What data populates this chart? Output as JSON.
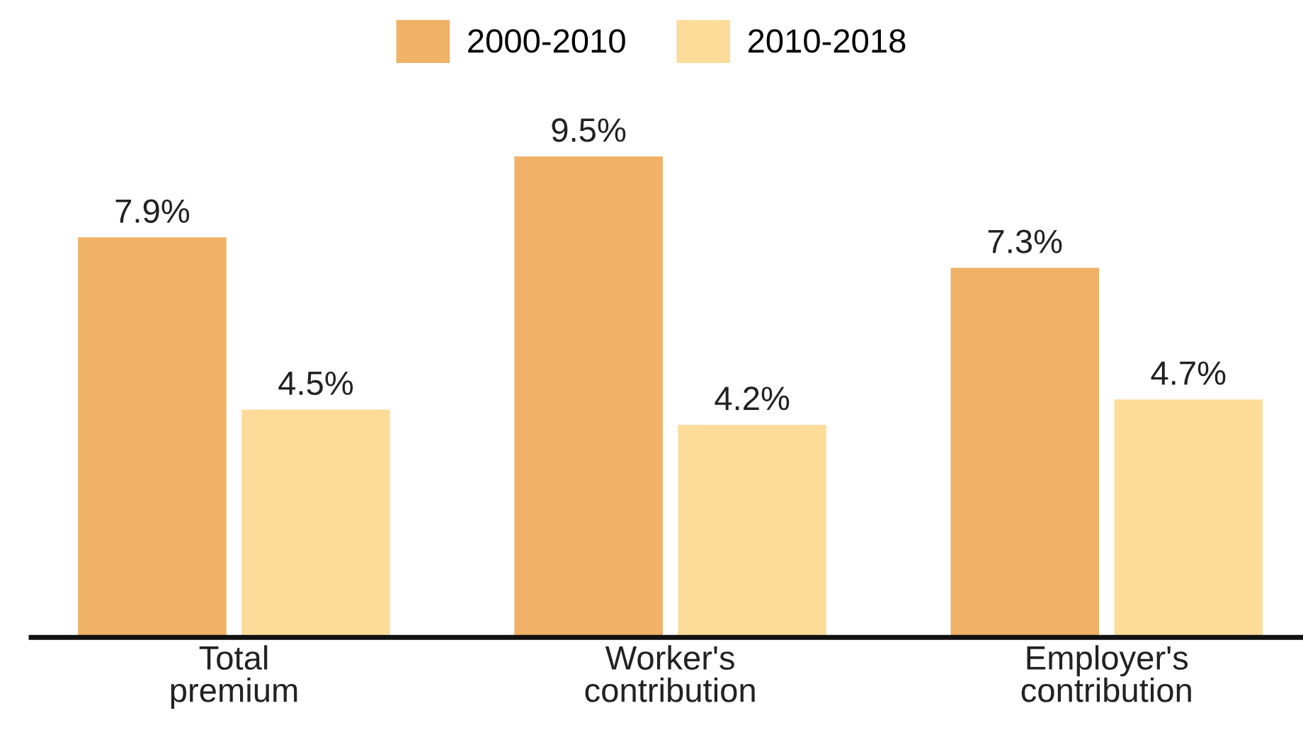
{
  "chart_data": {
    "type": "bar",
    "categories": [
      "Total premium",
      "Worker's contribution",
      "Employer's contribution"
    ],
    "series": [
      {
        "name": "2000-2010",
        "color": "#efb266",
        "values": [
          7.9,
          9.5,
          7.3
        ],
        "value_labels": [
          "7.9%",
          "9.5%",
          "7.3%"
        ]
      },
      {
        "name": "2010-2018",
        "color": "#fddc9a",
        "values": [
          4.5,
          4.2,
          4.7
        ],
        "value_labels": [
          "4.5%",
          "4.2%",
          "4.7%"
        ]
      }
    ],
    "legend": "top",
    "grid": false,
    "tick_labels": "x"
  }
}
